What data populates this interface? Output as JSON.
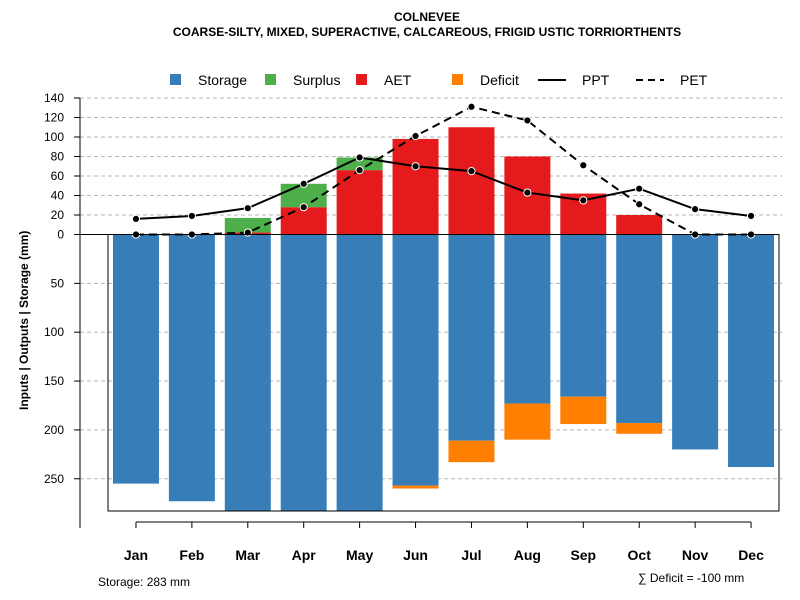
{
  "chart_data": {
    "type": "bar",
    "title": "COLNEVEE",
    "subtitle": "COARSE-SILTY, MIXED, SUPERACTIVE, CALCAREOUS, FRIGID USTIC TORRIORTHENTS",
    "ylabel": "Inputs | Outputs | Storage    (mm)",
    "ylim_upper": [
      0,
      140
    ],
    "ylim_lower": [
      0,
      283
    ],
    "upper_ticks": [
      0,
      20,
      40,
      60,
      80,
      100,
      120,
      140
    ],
    "lower_ticks": [
      50,
      100,
      150,
      200,
      250
    ],
    "categories": [
      "Jan",
      "Feb",
      "Mar",
      "Apr",
      "May",
      "Jun",
      "Jul",
      "Aug",
      "Sep",
      "Oct",
      "Nov",
      "Dec"
    ],
    "legend": [
      {
        "name": "Storage",
        "kind": "box",
        "color": "#377EB8"
      },
      {
        "name": "Surplus",
        "kind": "box",
        "color": "#4DAF4A"
      },
      {
        "name": "AET",
        "kind": "box",
        "color": "#E41A1C"
      },
      {
        "name": "Deficit",
        "kind": "box",
        "color": "#FF7F00"
      },
      {
        "name": "PPT",
        "kind": "solid",
        "color": "#000000"
      },
      {
        "name": "PET",
        "kind": "dashed",
        "color": "#000000"
      }
    ],
    "series": [
      {
        "name": "AET",
        "values": [
          0,
          0,
          2,
          28,
          66,
          98,
          110,
          80,
          42,
          20,
          0,
          0
        ]
      },
      {
        "name": "Surplus",
        "values": [
          0,
          0,
          15,
          24,
          13,
          0,
          0,
          0,
          0,
          0,
          0,
          0
        ]
      },
      {
        "name": "Storage",
        "values": [
          255,
          273,
          283,
          283,
          283,
          257,
          211,
          173,
          166,
          193,
          220,
          238
        ]
      },
      {
        "name": "Deficit",
        "values": [
          0,
          0,
          0,
          0,
          0,
          3,
          22,
          37,
          28,
          11,
          0,
          0
        ]
      },
      {
        "name": "PPT",
        "values": [
          16,
          19,
          27,
          52,
          79,
          70,
          65,
          43,
          35,
          47,
          26,
          19
        ]
      },
      {
        "name": "PET",
        "values": [
          0,
          0,
          2,
          28,
          66,
          101,
          131,
          117,
          71,
          31,
          0,
          0
        ]
      }
    ],
    "storage_capacity": 283,
    "storage_label": "Storage: 283 mm",
    "deficit_label": "∑ Deficit = -100 mm"
  }
}
